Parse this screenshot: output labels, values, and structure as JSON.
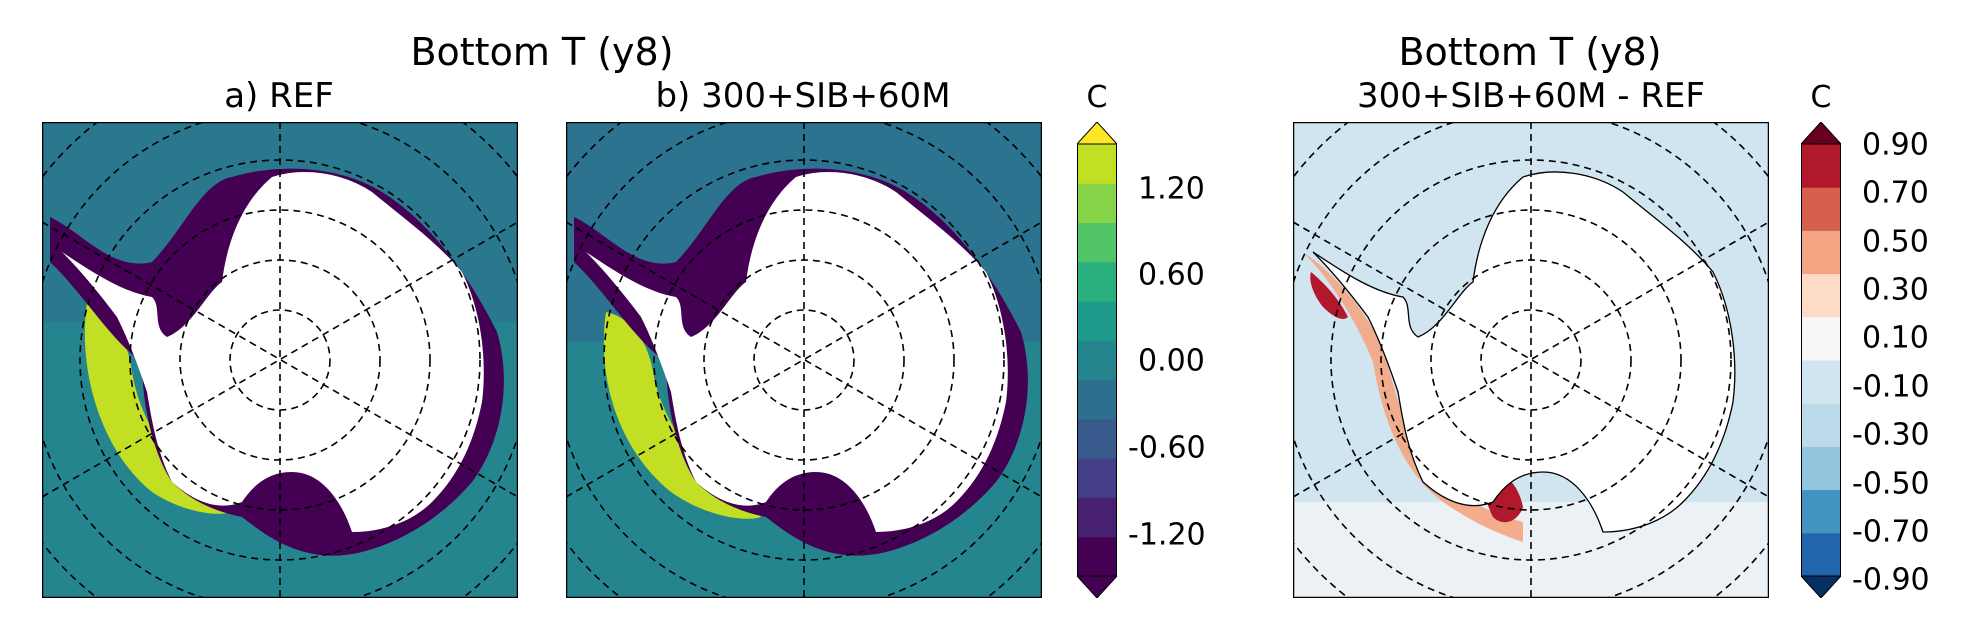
{
  "figure": {
    "left_group_title": "Bottom T (y8)",
    "right_title": "Bottom T (y8)",
    "panels": [
      {
        "id": "a",
        "subtitle": "a) REF",
        "field": "bottom-temperature",
        "colormap": "viridis"
      },
      {
        "id": "b",
        "subtitle": "b) 300+SIB+60M",
        "field": "bottom-temperature",
        "colormap": "viridis"
      },
      {
        "id": "c",
        "subtitle": "300+SIB+60M - REF",
        "field": "bottom-temperature-difference",
        "colormap": "RdBu_r"
      }
    ]
  },
  "colorbar_temperature": {
    "unit": "C",
    "tick_labels": [
      "1.20",
      "0.60",
      "0.00",
      "-0.60",
      "-1.20"
    ],
    "colors": [
      "#440154",
      "#482173",
      "#433e85",
      "#38598c",
      "#2d708e",
      "#25858e",
      "#1e9b8a",
      "#2ab07f",
      "#52c569",
      "#86d549",
      "#c2df23"
    ],
    "extend_min_color": "#440154",
    "extend_max_color": "#fde725"
  },
  "colorbar_difference": {
    "unit": "C",
    "tick_labels": [
      "0.90",
      "0.70",
      "0.50",
      "0.30",
      "0.10",
      "-0.10",
      "-0.30",
      "-0.50",
      "-0.70",
      "-0.90"
    ],
    "colors": [
      "#2166ac",
      "#4393c3",
      "#92c5de",
      "#bcdaea",
      "#d1e5f0",
      "#f7f7f7",
      "#fddbc7",
      "#f4a582",
      "#d6604d",
      "#b2182b"
    ],
    "extend_min_color": "#053061",
    "extend_max_color": "#67001f"
  },
  "colors": {
    "land": "#ffffff",
    "shelf_cold": "#440154",
    "ocean_mid": "#2d708e",
    "ocean_green": "#25858e",
    "warm_shelf": "#c2df23",
    "diff_bg": "#d1e5f0",
    "diff_warm": "#b2182b"
  }
}
